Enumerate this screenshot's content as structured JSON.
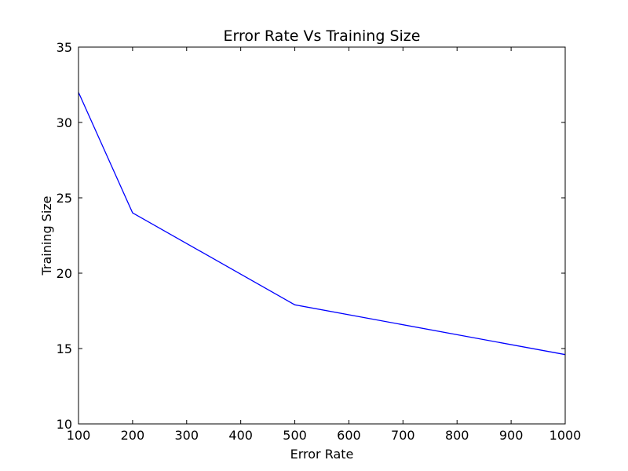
{
  "chart_data": {
    "type": "line",
    "title": "Error Rate Vs Training Size",
    "xlabel": "Error Rate",
    "ylabel": "Training Size",
    "xlim": [
      100,
      1000
    ],
    "ylim": [
      10,
      35
    ],
    "xticks": [
      100,
      200,
      300,
      400,
      500,
      600,
      700,
      800,
      900,
      1000
    ],
    "yticks": [
      10,
      15,
      20,
      25,
      30,
      35
    ],
    "grid": false,
    "legend": "none",
    "series": [
      {
        "color": "#0000ff",
        "x": [
          100,
          200,
          500,
          1000
        ],
        "y": [
          32.0,
          24.0,
          17.9,
          14.6
        ]
      }
    ]
  }
}
